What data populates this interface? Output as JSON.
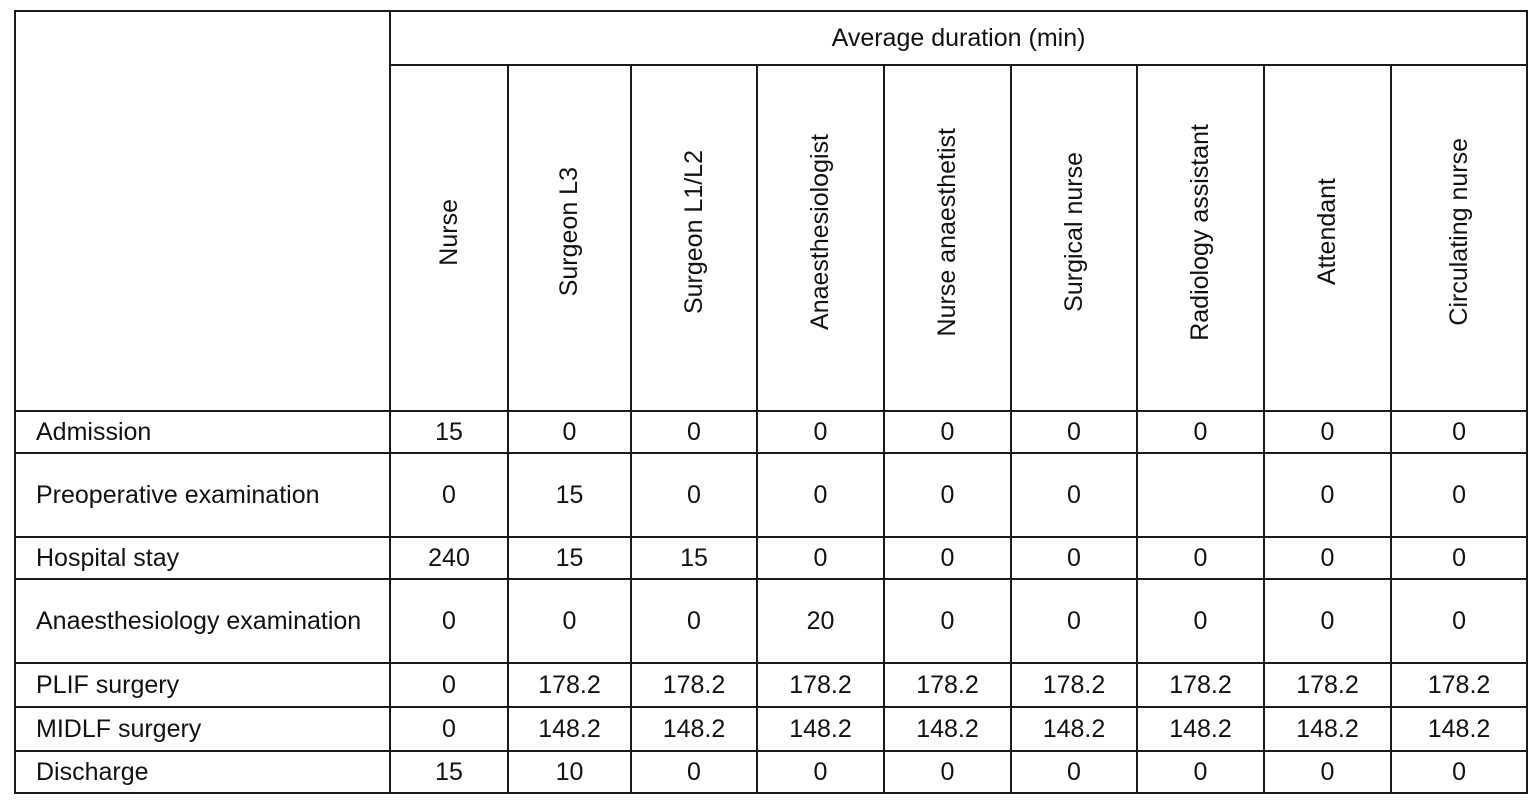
{
  "table": {
    "group_header": "Average duration (min)",
    "columns": [
      "Nurse",
      "Surgeon L3",
      "Surgeon L1/L2",
      "Anaesthesiologist",
      "Nurse anaesthetist",
      "Surgical nurse",
      "Radiology assistant",
      "Attendant",
      "Circulating nurse"
    ],
    "rows": [
      {
        "label": "Admission",
        "values": [
          "15",
          "0",
          "0",
          "0",
          "0",
          "0",
          "0",
          "0",
          "0"
        ]
      },
      {
        "label": "Preoperative examination",
        "values": [
          "0",
          "15",
          "0",
          "0",
          "0",
          "0",
          "",
          "0",
          "0"
        ]
      },
      {
        "label": "Hospital stay",
        "values": [
          "240",
          "15",
          "15",
          "0",
          "0",
          "0",
          "0",
          "0",
          "0"
        ]
      },
      {
        "label": "Anaesthesiology examination",
        "values": [
          "0",
          "0",
          "0",
          "20",
          "0",
          "0",
          "0",
          "0",
          "0"
        ]
      },
      {
        "label": "PLIF surgery",
        "values": [
          "0",
          "178.2",
          "178.2",
          "178.2",
          "178.2",
          "178.2",
          "178.2",
          "178.2",
          "178.2"
        ]
      },
      {
        "label": "MIDLF surgery",
        "values": [
          "0",
          "148.2",
          "148.2",
          "148.2",
          "148.2",
          "148.2",
          "148.2",
          "148.2",
          "148.2"
        ]
      },
      {
        "label": "Discharge",
        "values": [
          "15",
          "10",
          "0",
          "0",
          "0",
          "0",
          "0",
          "0",
          "0"
        ]
      }
    ]
  }
}
